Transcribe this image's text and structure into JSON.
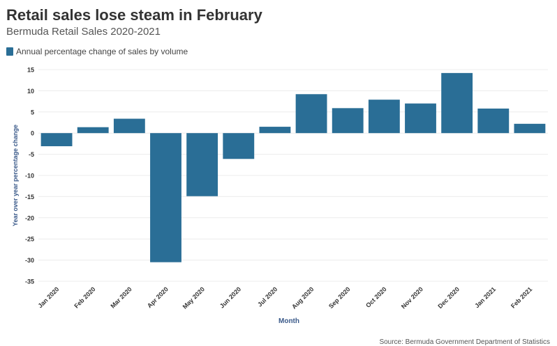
{
  "header": {
    "title": "Retail sales lose steam in February",
    "subtitle": "Bermuda Retail Sales 2020-2021"
  },
  "legend": {
    "label": "Annual percentage change of sales by volume",
    "color": "#2a6e96"
  },
  "footer": {
    "source": "Source: Bermuda Government Department of Statistics"
  },
  "chart_data": {
    "type": "bar",
    "categories": [
      "Jan 2020",
      "Feb 2020",
      "Mar 2020",
      "Apr 2020",
      "May 2020",
      "Jun 2020",
      "Jul 2020",
      "Aug 2020",
      "Sep 2020",
      "Oct 2020",
      "Nov 2020",
      "Dec 2020",
      "Jan 2021",
      "Feb 2021"
    ],
    "series": [
      {
        "name": "Annual percentage change of sales by volume",
        "values": [
          -3.1,
          1.4,
          3.4,
          -30.5,
          -14.9,
          -6.1,
          1.5,
          9.2,
          5.9,
          7.9,
          7.0,
          14.2,
          5.8,
          2.2
        ],
        "color": "#2a6e96"
      }
    ],
    "xlabel": "Month",
    "ylabel": "Year over year percentage change",
    "ylim": [
      -35,
      15
    ],
    "yticks": [
      15,
      10,
      5,
      0,
      -5,
      -10,
      -15,
      -20,
      -25,
      -30,
      -35
    ],
    "grid": true
  }
}
